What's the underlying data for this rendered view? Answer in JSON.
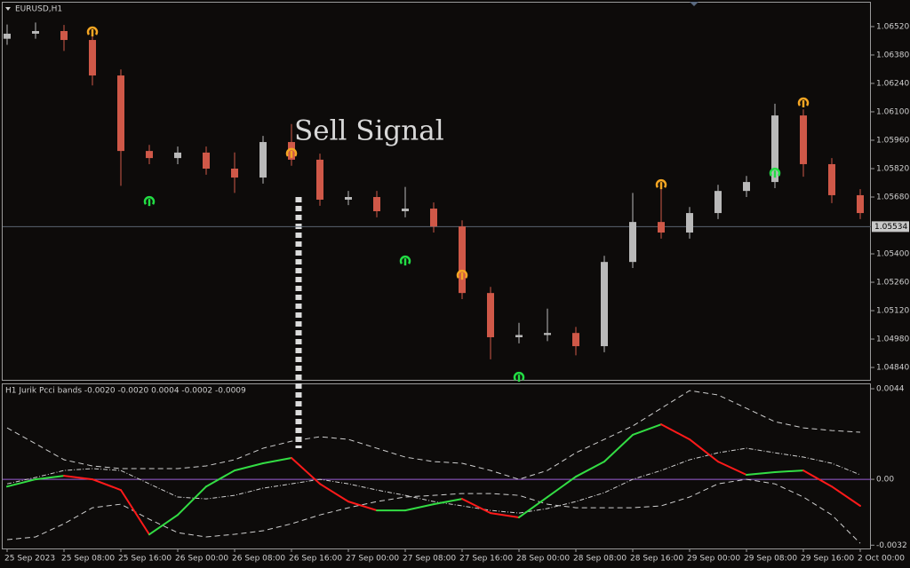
{
  "chart_data": [
    {
      "type": "candlestick",
      "title": "EURUSD,H1",
      "categories": [
        "25 Sep 2023",
        null,
        "25 Sep 08:00",
        null,
        "25 Sep 16:00",
        null,
        "26 Sep 00:00",
        null,
        "26 Sep 08:00",
        null,
        "26 Sep 16:00",
        null,
        "27 Sep 00:00",
        null,
        "27 Sep 08:00",
        null,
        "27 Sep 16:00",
        null,
        "28 Sep 00:00",
        null,
        "28 Sep 08:00",
        null,
        "28 Sep 16:00",
        null,
        "29 Sep 00:00",
        null,
        "29 Sep 08:00",
        null,
        "29 Sep 16:00",
        null,
        "2 Oct 00:00"
      ],
      "open": [
        1.0646,
        1.06485,
        1.06498,
        1.06454,
        1.06279,
        1.05907,
        1.05872,
        1.05899,
        1.0582,
        1.05776,
        1.05951,
        1.05864,
        1.05667,
        1.0568,
        1.0561,
        1.05623,
        1.05535,
        1.05207,
        1.04989,
        1.05,
        1.0501,
        1.04945,
        1.0536,
        1.05557,
        1.05505,
        1.05601,
        1.0571,
        1.05754,
        1.06082,
        1.05842,
        1.05689
      ],
      "high": [
        1.0653,
        1.0654,
        1.06528,
        1.06484,
        1.06309,
        1.05937,
        1.05929,
        1.05929,
        1.059,
        1.05981,
        1.0604,
        1.05894,
        1.0571,
        1.0571,
        1.0573,
        1.05653,
        1.05565,
        1.05237,
        1.0506,
        1.0513,
        1.0504,
        1.0539,
        1.057,
        1.0575,
        1.05631,
        1.0574,
        1.05784,
        1.0614,
        1.06112,
        1.05872,
        1.05719
      ],
      "low": [
        1.0643,
        1.0646,
        1.064,
        1.0623,
        1.05735,
        1.05842,
        1.05842,
        1.0579,
        1.057,
        1.05746,
        1.05834,
        1.05637,
        1.0564,
        1.0558,
        1.0558,
        1.05505,
        1.05177,
        1.0488,
        1.04959,
        1.0497,
        1.049,
        1.04915,
        1.0533,
        1.05475,
        1.05475,
        1.05571,
        1.0568,
        1.05724,
        1.0578,
        1.0565,
        1.05571
      ],
      "close": [
        1.06485,
        1.06498,
        1.06454,
        1.06279,
        1.05907,
        1.05872,
        1.05899,
        1.0582,
        1.05776,
        1.05951,
        1.05864,
        1.05667,
        1.0568,
        1.0561,
        1.05623,
        1.05535,
        1.05207,
        1.04989,
        1.05,
        1.0501,
        1.04945,
        1.0536,
        1.05557,
        1.05505,
        1.05601,
        1.0571,
        1.05754,
        1.06082,
        1.05842,
        1.05689,
        1.05601
      ],
      "up_color": "#b9b9b9",
      "down_color": "#cf5848",
      "ylim": [
        1.04779,
        1.06651
      ],
      "yticks": [
        {
          "value": 1.0652,
          "label": "1.06520"
        },
        {
          "value": 1.0638,
          "label": "1.06380"
        },
        {
          "value": 1.0624,
          "label": "1.06240"
        },
        {
          "value": 1.061,
          "label": "1.06100"
        },
        {
          "value": 1.0596,
          "label": "1.05960"
        },
        {
          "value": 1.0582,
          "label": "1.05820"
        },
        {
          "value": 1.0568,
          "label": "1.05680"
        },
        {
          "value": 1.054,
          "label": "1.05400"
        },
        {
          "value": 1.0526,
          "label": "1.05260"
        },
        {
          "value": 1.0512,
          "label": "1.05120"
        },
        {
          "value": 1.0498,
          "label": "1.04980"
        },
        {
          "value": 1.0484,
          "label": "1.04840"
        }
      ],
      "current_price": 1.05534,
      "annotation": "Sell Signal",
      "signals": [
        {
          "name": "sell",
          "color": "#f5a623",
          "x": [
            3,
            10,
            16,
            23,
            28
          ],
          "values": [
            1.06498,
            1.05899,
            1.05299,
            1.05745,
            1.06148
          ]
        },
        {
          "name": "buy",
          "color": "#22dd44",
          "x": [
            5,
            14,
            18,
            27
          ],
          "values": [
            1.05662,
            1.05369,
            1.04796,
            1.05802
          ]
        }
      ]
    },
    {
      "type": "line",
      "title": "H1  Jurik Pcci bands  -0.0020 -0.0020 0.0004 -0.0002 -0.0009",
      "ylim": [
        -0.00336,
        0.00466
      ],
      "yticks": [
        0.0044,
        {
          "value": 0,
          "label": "0.00"
        },
        -0.0032
      ],
      "zero_color": "#9b5fd6",
      "series": [
        {
          "name": "upper",
          "color": "#cfcfcf",
          "dash": "6 4",
          "values": [
            0.0025,
            0.00173,
            0.00095,
            0.00065,
            0.00052,
            0.00052,
            0.00052,
            0.00065,
            0.00095,
            0.00151,
            0.00185,
            0.00207,
            0.00194,
            0.00151,
            0.00108,
            0.00086,
            0.00078,
            0.00043,
            0,
            0.00043,
            0.00129,
            0.00194,
            0.00259,
            0.00345,
            0.00431,
            0.0041,
            0.00345,
            0.0028,
            0.0025,
            0.00237,
            0.00229
          ]
        },
        {
          "name": "middle",
          "color": "#cfcfcf",
          "dash": "5 2 1 2",
          "values": [
            -0.00022,
            9e-05,
            0.00043,
            0.00052,
            0.00043,
            -0.00022,
            -0.00086,
            -0.00095,
            -0.00078,
            -0.00043,
            -0.00022,
            0,
            -0.00022,
            -0.00052,
            -0.00078,
            -0.00108,
            -0.00129,
            -0.00151,
            -0.00164,
            -0.00142,
            -0.00108,
            -0.00065,
            0,
            0.00043,
            0.00095,
            0.00129,
            0.00151,
            0.00129,
            0.00108,
            0.00078,
            0.00022
          ]
        },
        {
          "name": "lower",
          "color": "#cfcfcf",
          "dash": "6 4",
          "values": [
            -0.00293,
            -0.0028,
            -0.00216,
            -0.00138,
            -0.00121,
            -0.00194,
            -0.00259,
            -0.0028,
            -0.00267,
            -0.0025,
            -0.00216,
            -0.00173,
            -0.00138,
            -0.00108,
            -0.00086,
            -0.00078,
            -0.00069,
            -0.00069,
            -0.00078,
            -0.00121,
            -0.00138,
            -0.00138,
            -0.00138,
            -0.00129,
            -0.00086,
            -0.00022,
            0,
            -0.00022,
            -0.00086,
            -0.00173,
            -0.00311
          ]
        },
        {
          "name": "pcci",
          "color": "#33dd44",
          "down_color": "#ff1a1a",
          "values": [
            -0.00035,
            0,
            0.00017,
            0,
            -0.00052,
            -0.00268,
            -0.00173,
            -0.00035,
            0.00043,
            0.00078,
            0.00104,
            -0.00022,
            -0.00108,
            -0.00151,
            -0.00151,
            -0.00121,
            -0.00095,
            -0.00164,
            -0.00185,
            -0.00086,
            0.00013,
            0.00086,
            0.00216,
            0.00267,
            0.00194,
            0.00086,
            0.00022,
            0.00035,
            0.00043,
            -0.00035,
            -0.00129
          ]
        }
      ]
    }
  ]
}
